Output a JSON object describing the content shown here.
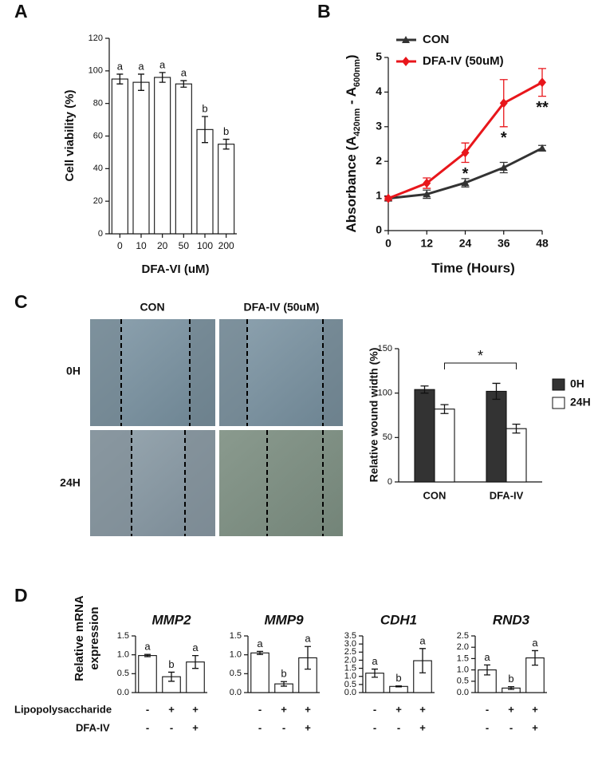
{
  "panels": [
    "A",
    "B",
    "C",
    "D"
  ],
  "wound_images": {
    "columns": [
      "CON",
      "DFA-IV (50uM)"
    ],
    "rows": [
      "0H",
      "24H"
    ]
  },
  "mrna_ylabel_lines": [
    "Relative mRNA",
    "expression"
  ],
  "treatments": [
    {
      "label": "Lipopolysaccharide",
      "signs": [
        "-",
        "+",
        "+"
      ]
    },
    {
      "label": "DFA-IV",
      "signs": [
        "-",
        "-",
        "+"
      ]
    }
  ],
  "chart_data": [
    {
      "type": "bar",
      "xlabel": "DFA-VI (uM)",
      "ylabel": "Cell viability (%)",
      "categories": [
        "0",
        "10",
        "20",
        "50",
        "100",
        "200"
      ],
      "values": [
        95,
        93,
        96,
        92,
        64,
        55
      ],
      "errors": [
        3,
        5,
        3,
        2,
        8,
        3
      ],
      "annotations": [
        "a",
        "a",
        "a",
        "a",
        "b",
        "b"
      ],
      "color": "#ffffff",
      "ylim": [
        0,
        120
      ],
      "yticks": [
        0,
        20,
        40,
        60,
        80,
        100,
        120
      ]
    },
    {
      "type": "line",
      "xlabel": "Time (Hours)",
      "ylabel_parts": [
        "Absorbance (A",
        "420nm",
        " - A",
        "600nm",
        ")"
      ],
      "x": [
        0,
        12,
        24,
        36,
        48
      ],
      "series": [
        {
          "name": "CON",
          "color": "#333333",
          "marker": "triangle",
          "values": [
            0.93,
            1.05,
            1.38,
            1.82,
            2.38
          ],
          "errors": [
            0.05,
            0.12,
            0.12,
            0.15,
            0.08
          ]
        },
        {
          "name": "DFA-IV (50uM)",
          "color": "#e8161b",
          "marker": "diamond",
          "values": [
            0.93,
            1.37,
            2.25,
            3.68,
            4.28
          ],
          "errors": [
            0.05,
            0.15,
            0.28,
            0.68,
            0.4
          ]
        }
      ],
      "annotations": [
        null,
        null,
        "*",
        "*",
        "**"
      ],
      "xlim": [
        0,
        48
      ],
      "xticks": [
        0,
        12,
        24,
        36,
        48
      ],
      "ylim": [
        0,
        5
      ],
      "yticks": [
        0,
        1,
        2,
        3,
        4,
        5
      ]
    },
    {
      "type": "grouped_bar",
      "ylabel": "Relative wound width (%)",
      "categories": [
        "CON",
        "DFA-IV"
      ],
      "series": [
        {
          "name": "0H",
          "color": "#333333",
          "values": [
            104,
            102
          ],
          "errors": [
            4,
            9
          ]
        },
        {
          "name": "24H",
          "color": "#ffffff",
          "values": [
            82,
            60
          ],
          "errors": [
            5,
            5
          ]
        }
      ],
      "comparison": "*",
      "ylim": [
        0,
        150
      ],
      "yticks": [
        0,
        50,
        100,
        150
      ]
    },
    {
      "type": "bar",
      "title": "MMP2",
      "categories": [
        null,
        null,
        null
      ],
      "values": [
        0.98,
        0.42,
        0.81
      ],
      "errors": [
        0.03,
        0.12,
        0.17
      ],
      "annotations": [
        "a",
        "b",
        "a"
      ],
      "color": "#ffffff",
      "ylim": [
        0,
        1.5
      ],
      "yticks": [
        {
          "value": 0,
          "label": "0.0"
        },
        0.5,
        {
          "value": 1,
          "label": "1.0"
        },
        1.5
      ]
    },
    {
      "type": "bar",
      "title": "MMP9",
      "categories": [
        null,
        null,
        null
      ],
      "values": [
        1.05,
        0.23,
        0.92
      ],
      "errors": [
        0.04,
        0.06,
        0.3
      ],
      "annotations": [
        "a",
        "b",
        "a"
      ],
      "color": "#ffffff",
      "ylim": [
        0,
        1.5
      ],
      "yticks": [
        {
          "value": 0,
          "label": "0.0"
        },
        0.5,
        {
          "value": 1,
          "label": "1.0"
        },
        1.5
      ]
    },
    {
      "type": "bar",
      "title": "CDH1",
      "categories": [
        null,
        null,
        null
      ],
      "values": [
        1.2,
        0.38,
        1.97
      ],
      "errors": [
        0.25,
        0.03,
        0.75
      ],
      "annotations": [
        "a",
        "b",
        "a"
      ],
      "color": "#ffffff",
      "ylim": [
        0,
        3.5
      ],
      "yticks": [
        {
          "value": 0,
          "label": "0.0"
        },
        0.5,
        {
          "value": 1,
          "label": "1.0"
        },
        1.5,
        {
          "value": 2,
          "label": "2.0"
        },
        2.5,
        {
          "value": 3,
          "label": "3.0"
        },
        3.5
      ]
    },
    {
      "type": "bar",
      "title": "RND3",
      "categories": [
        null,
        null,
        null
      ],
      "values": [
        1.0,
        0.2,
        1.53
      ],
      "errors": [
        0.22,
        0.06,
        0.32
      ],
      "annotations": [
        "a",
        "b",
        "a"
      ],
      "color": "#ffffff",
      "ylim": [
        0,
        2.5
      ],
      "yticks": [
        {
          "value": 0,
          "label": "0.0"
        },
        0.5,
        {
          "value": 1,
          "label": "1.0"
        },
        1.5,
        {
          "value": 2,
          "label": "2.0"
        },
        2.5
      ]
    }
  ]
}
